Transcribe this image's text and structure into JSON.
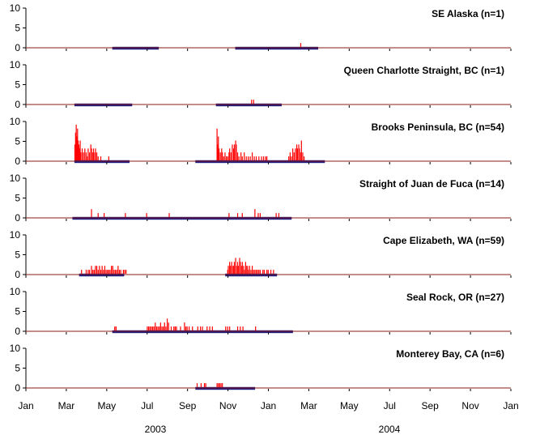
{
  "chart_data": {
    "type": "bar",
    "x_axis": {
      "ticks": [
        "Jan",
        "Mar",
        "May",
        "Jul",
        "Sep",
        "Nov",
        "Jan",
        "Mar",
        "May",
        "Jul",
        "Sep",
        "Nov",
        "Jan"
      ],
      "years": [
        "2003",
        "2004"
      ],
      "range_days": [
        0,
        730
      ]
    },
    "y_axis": {
      "ticks": [
        "0",
        "5",
        "10"
      ],
      "ylim": [
        0,
        10
      ]
    },
    "colors": {
      "bars": "#ff0000",
      "deployment": "#1a1a80",
      "baseline": "#8b1a1a"
    },
    "panels": [
      {
        "title": "SE Alaska (n=1)",
        "deployments": [
          [
            130,
            200
          ],
          [
            315,
            440
          ]
        ],
        "bars": [
          [
            413,
            1
          ]
        ]
      },
      {
        "title": "Queen Charlotte Straight, BC (n=1)",
        "deployments": [
          [
            73,
            160
          ],
          [
            286,
            385
          ]
        ],
        "bars": [
          [
            339,
            1
          ],
          [
            342,
            1
          ]
        ]
      },
      {
        "title": "Brooks Peninsula, BC (n=54)",
        "deployments": [
          [
            73,
            156
          ],
          [
            255,
            450
          ]
        ],
        "bars": [
          [
            73,
            4
          ],
          [
            74,
            7
          ],
          [
            75,
            9
          ],
          [
            76,
            6
          ],
          [
            77,
            8
          ],
          [
            78,
            5
          ],
          [
            79,
            4
          ],
          [
            80,
            3
          ],
          [
            81,
            5
          ],
          [
            82,
            2
          ],
          [
            84,
            3
          ],
          [
            86,
            2
          ],
          [
            88,
            3
          ],
          [
            90,
            2
          ],
          [
            92,
            1
          ],
          [
            93,
            3
          ],
          [
            95,
            2
          ],
          [
            97,
            4
          ],
          [
            98,
            3
          ],
          [
            100,
            2
          ],
          [
            101,
            3
          ],
          [
            103,
            2
          ],
          [
            104,
            3
          ],
          [
            106,
            2
          ],
          [
            108,
            1
          ],
          [
            112,
            1
          ],
          [
            124,
            1
          ],
          [
            287,
            8
          ],
          [
            288,
            4
          ],
          [
            289,
            6
          ],
          [
            290,
            3
          ],
          [
            292,
            2
          ],
          [
            294,
            3
          ],
          [
            295,
            2
          ],
          [
            297,
            1
          ],
          [
            299,
            2
          ],
          [
            301,
            1
          ],
          [
            303,
            1
          ],
          [
            305,
            2
          ],
          [
            306,
            3
          ],
          [
            308,
            2
          ],
          [
            310,
            4
          ],
          [
            312,
            3
          ],
          [
            313,
            4
          ],
          [
            315,
            5
          ],
          [
            316,
            4
          ],
          [
            318,
            2
          ],
          [
            320,
            1
          ],
          [
            323,
            2
          ],
          [
            325,
            1
          ],
          [
            328,
            2
          ],
          [
            331,
            1
          ],
          [
            334,
            1
          ],
          [
            337,
            1
          ],
          [
            340,
            2
          ],
          [
            343,
            1
          ],
          [
            346,
            1
          ],
          [
            350,
            1
          ],
          [
            354,
            1
          ],
          [
            357,
            1
          ],
          [
            360,
            1
          ],
          [
            362,
            1
          ],
          [
            395,
            1
          ],
          [
            397,
            2
          ],
          [
            399,
            1
          ],
          [
            401,
            3
          ],
          [
            403,
            2
          ],
          [
            405,
            3
          ],
          [
            407,
            4
          ],
          [
            408,
            3
          ],
          [
            410,
            4
          ],
          [
            411,
            3
          ],
          [
            413,
            2
          ],
          [
            414,
            5
          ],
          [
            416,
            2
          ],
          [
            418,
            1
          ]
        ]
      },
      {
        "title": "Straight of Juan de Fuca (n=14)",
        "deployments": [
          [
            70,
            400
          ]
        ],
        "bars": [
          [
            98,
            2
          ],
          [
            108,
            1
          ],
          [
            117,
            1
          ],
          [
            149,
            1
          ],
          [
            181,
            1
          ],
          [
            215,
            1
          ],
          [
            305,
            1
          ],
          [
            318,
            1
          ],
          [
            325,
            1
          ],
          [
            344,
            2
          ],
          [
            349,
            1
          ],
          [
            352,
            1
          ],
          [
            376,
            1
          ],
          [
            380,
            1
          ]
        ]
      },
      {
        "title": "Cape Elizabeth, WA (n=59)",
        "deployments": [
          [
            80,
            148
          ],
          [
            300,
            378
          ]
        ],
        "bars": [
          [
            83,
            1
          ],
          [
            90,
            1
          ],
          [
            93,
            1
          ],
          [
            95,
            1
          ],
          [
            98,
            2
          ],
          [
            100,
            1
          ],
          [
            102,
            1
          ],
          [
            104,
            2
          ],
          [
            106,
            2
          ],
          [
            108,
            1
          ],
          [
            110,
            2
          ],
          [
            112,
            1
          ],
          [
            114,
            2
          ],
          [
            116,
            1
          ],
          [
            118,
            2
          ],
          [
            120,
            1
          ],
          [
            122,
            1
          ],
          [
            124,
            1
          ],
          [
            126,
            1
          ],
          [
            128,
            2
          ],
          [
            130,
            2
          ],
          [
            132,
            1
          ],
          [
            134,
            1
          ],
          [
            136,
            1
          ],
          [
            138,
            2
          ],
          [
            140,
            1
          ],
          [
            142,
            1
          ],
          [
            146,
            1
          ],
          [
            148,
            1
          ],
          [
            150,
            1
          ],
          [
            303,
            1
          ],
          [
            304,
            2
          ],
          [
            306,
            3
          ],
          [
            307,
            2
          ],
          [
            309,
            3
          ],
          [
            310,
            2
          ],
          [
            312,
            2
          ],
          [
            313,
            3
          ],
          [
            315,
            4
          ],
          [
            316,
            2
          ],
          [
            318,
            3
          ],
          [
            319,
            2
          ],
          [
            321,
            4
          ],
          [
            322,
            3
          ],
          [
            324,
            2
          ],
          [
            325,
            3
          ],
          [
            327,
            2
          ],
          [
            328,
            1
          ],
          [
            330,
            3
          ],
          [
            331,
            2
          ],
          [
            333,
            2
          ],
          [
            334,
            1
          ],
          [
            336,
            2
          ],
          [
            338,
            1
          ],
          [
            340,
            2
          ],
          [
            342,
            1
          ],
          [
            344,
            1
          ],
          [
            346,
            1
          ],
          [
            348,
            1
          ],
          [
            350,
            1
          ],
          [
            352,
            1
          ],
          [
            356,
            1
          ],
          [
            358,
            1
          ],
          [
            362,
            1
          ],
          [
            364,
            1
          ],
          [
            368,
            1
          ],
          [
            372,
            1
          ]
        ]
      },
      {
        "title": "Seal Rock, OR (n=27)",
        "deployments": [
          [
            130,
            402
          ]
        ],
        "bars": [
          [
            133,
            1
          ],
          [
            135,
            1
          ],
          [
            182,
            1
          ],
          [
            184,
            1
          ],
          [
            186,
            1
          ],
          [
            188,
            1
          ],
          [
            190,
            1
          ],
          [
            192,
            1
          ],
          [
            194,
            2
          ],
          [
            196,
            1
          ],
          [
            198,
            1
          ],
          [
            200,
            1
          ],
          [
            202,
            2
          ],
          [
            204,
            1
          ],
          [
            206,
            1
          ],
          [
            208,
            2
          ],
          [
            210,
            1
          ],
          [
            212,
            3
          ],
          [
            214,
            2
          ],
          [
            218,
            1
          ],
          [
            222,
            1
          ],
          [
            224,
            1
          ],
          [
            226,
            1
          ],
          [
            232,
            1
          ],
          [
            238,
            2
          ],
          [
            240,
            1
          ],
          [
            242,
            1
          ],
          [
            245,
            1
          ],
          [
            250,
            1
          ],
          [
            258,
            1
          ],
          [
            262,
            1
          ],
          [
            265,
            1
          ],
          [
            272,
            1
          ],
          [
            276,
            1
          ],
          [
            280,
            1
          ],
          [
            300,
            1
          ],
          [
            303,
            1
          ],
          [
            306,
            1
          ],
          [
            318,
            1
          ],
          [
            322,
            1
          ],
          [
            326,
            1
          ],
          [
            345,
            1
          ]
        ]
      },
      {
        "title": "Monterey Bay, CA (n=6)",
        "deployments": [
          [
            255,
            345
          ]
        ],
        "bars": [
          [
            257,
            1
          ],
          [
            263,
            1
          ],
          [
            268,
            1
          ],
          [
            270,
            1
          ],
          [
            287,
            1
          ],
          [
            289,
            1
          ],
          [
            291,
            1
          ],
          [
            293,
            1
          ],
          [
            295,
            1
          ]
        ]
      }
    ]
  }
}
